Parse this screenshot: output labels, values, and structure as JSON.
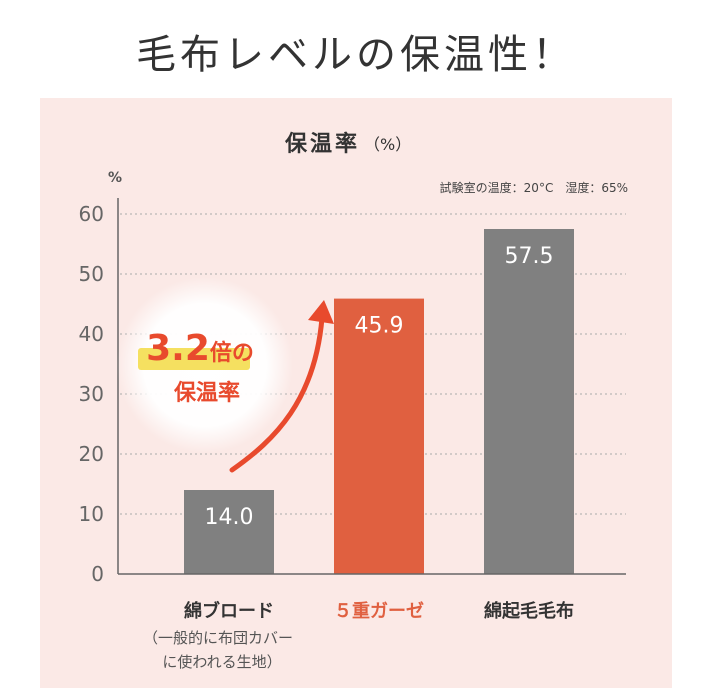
{
  "headline": "毛布レベルの保温性！",
  "chart_data": {
    "type": "bar",
    "title": "保温率",
    "title_unit": "（%）",
    "condition": "試験室の温度：20°C　湿度：65%",
    "ylabel": "%",
    "ylim": [
      0,
      60
    ],
    "yticks": [
      "0",
      "10",
      "20",
      "30",
      "40",
      "50",
      "60"
    ],
    "categories": [
      "綿ブロード",
      "５重ガーゼ",
      "綿起毛毛布"
    ],
    "values": [
      14.0,
      45.9,
      57.5
    ],
    "value_labels": [
      "14.0",
      "45.9",
      "57.5"
    ],
    "category_notes": [
      "（一般的に布団カバー",
      "に使われる生地）"
    ],
    "highlight_index": 1,
    "colors": {
      "bar": "#808080",
      "highlight": "#e06040",
      "grid": "#aaaaaa",
      "accent": "#e84a2d",
      "marker": "#f5e060"
    },
    "grid": true,
    "annotation": {
      "line1_number": "3.2",
      "line1_unit": "倍",
      "line1_particle": "の",
      "line2": "保温率"
    }
  }
}
